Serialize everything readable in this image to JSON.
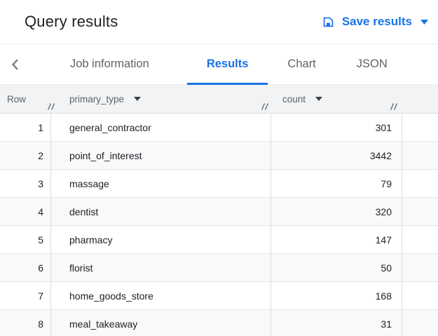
{
  "colors": {
    "accent": "#1a73e8",
    "title_text": "#202124",
    "tab_inactive_text": "#5f6368",
    "table_header_bg": "#f1f3f4",
    "alt_row_bg": "#f8f9fa"
  },
  "header": {
    "title": "Query results",
    "save_results": {
      "label": "Save results",
      "icon": "save-floppy-icon",
      "caret_icon": "caret-down-icon"
    }
  },
  "tab_bar": {
    "back_icon": "chevron-left-icon",
    "tabs": [
      {
        "label": "Job information",
        "active": false
      },
      {
        "label": "Results",
        "active": true
      },
      {
        "label": "Chart",
        "active": false
      },
      {
        "label": "JSON",
        "active": false
      }
    ]
  },
  "results_table": {
    "columns": [
      {
        "label": "Row",
        "sortable": false,
        "resizable": true
      },
      {
        "label": "primary_type",
        "sortable": true,
        "resizable": true
      },
      {
        "label": "count",
        "sortable": true,
        "resizable": true
      }
    ],
    "rows": [
      {
        "row": "1",
        "primary_type": "general_contractor",
        "count": "301"
      },
      {
        "row": "2",
        "primary_type": "point_of_interest",
        "count": "3442"
      },
      {
        "row": "3",
        "primary_type": "massage",
        "count": "79"
      },
      {
        "row": "4",
        "primary_type": "dentist",
        "count": "320"
      },
      {
        "row": "5",
        "primary_type": "pharmacy",
        "count": "147"
      },
      {
        "row": "6",
        "primary_type": "florist",
        "count": "50"
      },
      {
        "row": "7",
        "primary_type": "home_goods_store",
        "count": "168"
      },
      {
        "row": "8",
        "primary_type": "meal_takeaway",
        "count": "31"
      }
    ]
  }
}
